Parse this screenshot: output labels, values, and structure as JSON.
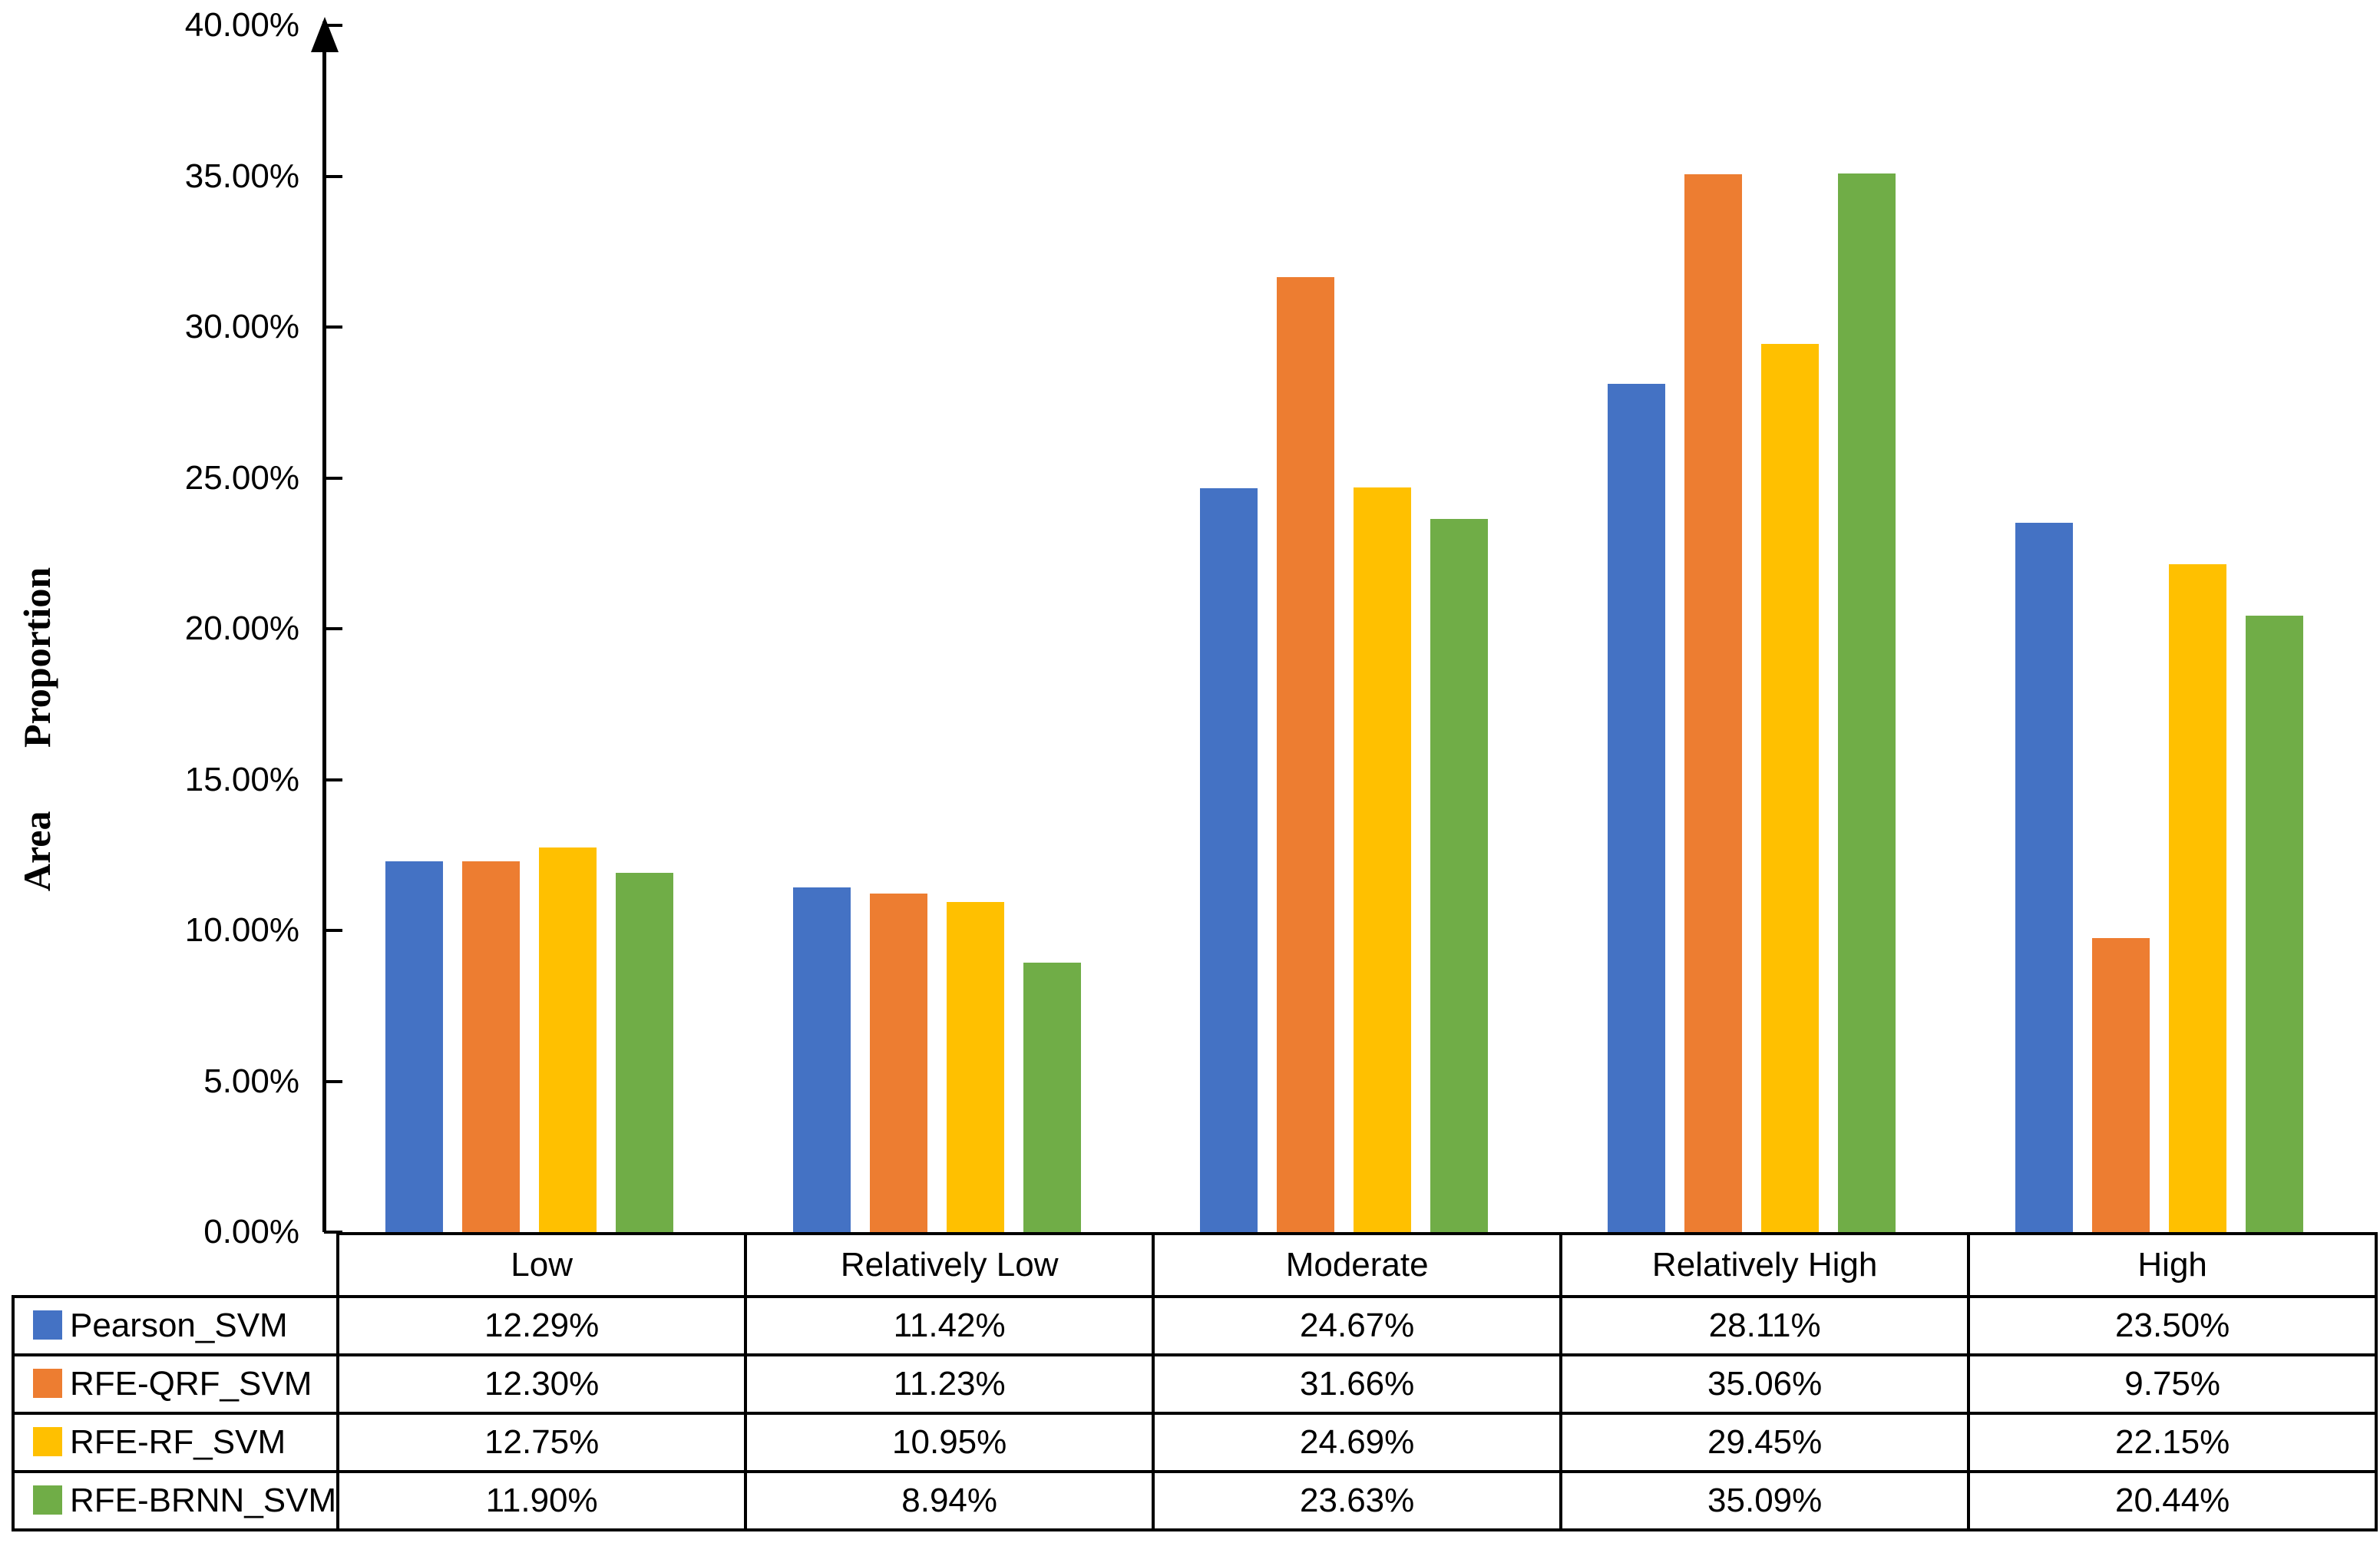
{
  "chart_data": {
    "type": "bar",
    "title": "",
    "ylabel": "Area Proportion",
    "xlabel": "",
    "grid": false,
    "legend_position": "table-left",
    "categories": [
      "Low",
      "Relatively Low",
      "Moderate",
      "Relatively High",
      "High"
    ],
    "series": [
      {
        "name": "Pearson_SVM",
        "color": "#4472C4",
        "values": [
          12.29,
          11.42,
          24.67,
          28.11,
          23.5
        ]
      },
      {
        "name": "RFE-QRF_SVM",
        "color": "#ED7D31",
        "values": [
          12.3,
          11.23,
          31.66,
          35.06,
          9.75
        ]
      },
      {
        "name": "RFE-RF_SVM",
        "color": "#FFC000",
        "values": [
          12.75,
          10.95,
          24.69,
          29.45,
          22.15
        ]
      },
      {
        "name": "RFE-BRNN_SVM",
        "color": "#70AD47",
        "values": [
          11.9,
          8.94,
          23.63,
          35.09,
          20.44
        ]
      }
    ],
    "y_axis": {
      "min": 0,
      "max": 40,
      "tick_step": 5,
      "tick_labels": [
        "0.00%",
        "5.00%",
        "10.00%",
        "15.00%",
        "20.00%",
        "25.00%",
        "30.00%",
        "35.00%",
        "40.00%"
      ]
    },
    "value_suffix": "%",
    "axis_color": "#000000",
    "table_border_color": "#000000"
  }
}
